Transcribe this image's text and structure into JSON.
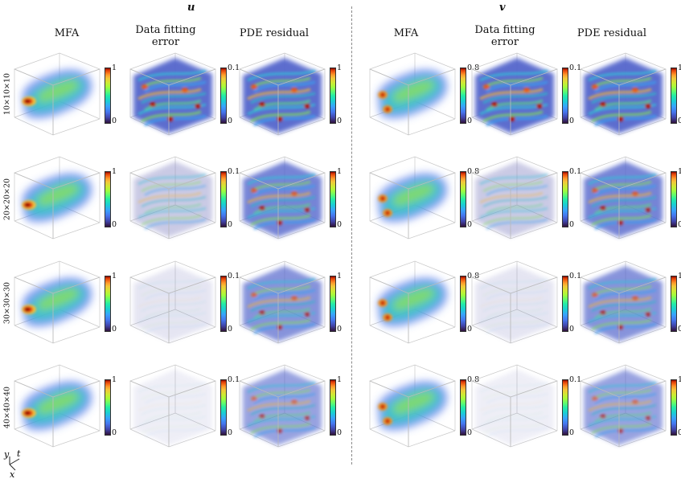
{
  "groups": [
    {
      "title": "u",
      "columns": [
        "MFA",
        "Data fitting error",
        "PDE residual"
      ]
    },
    {
      "title": "v",
      "columns": [
        "MFA",
        "Data fitting error",
        "PDE residual"
      ]
    }
  ],
  "rows": [
    "10×10×10",
    "20×20×20",
    "30×30×30",
    "40×40×40"
  ],
  "colorbar_ranges": {
    "u": {
      "mfa": [
        "0",
        "1"
      ],
      "error": [
        "0",
        "0.1"
      ],
      "residual": [
        "0",
        "1"
      ]
    },
    "v": {
      "mfa": [
        "0",
        "0.8"
      ],
      "error": [
        "0",
        "0.1"
      ],
      "residual": [
        "0",
        "1"
      ]
    }
  },
  "axes_labels": {
    "y": "y",
    "t": "t",
    "x": "x"
  },
  "colormap": "turbo"
}
